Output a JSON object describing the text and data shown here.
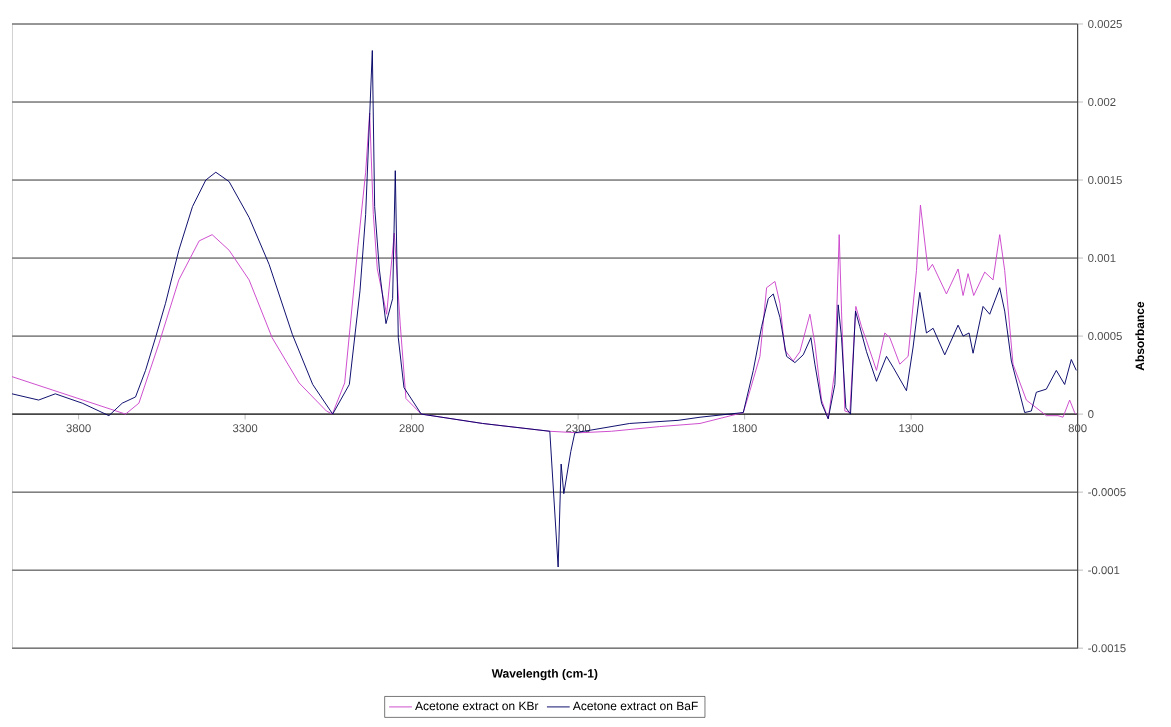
{
  "chart_data": {
    "type": "line",
    "xlabel": "Wavelength (cm-1)",
    "ylabel": "Absorbance",
    "xlim": [
      4000,
      800
    ],
    "xticks": [
      3800,
      3300,
      2800,
      2300,
      1800,
      1300,
      800
    ],
    "ylim": [
      -0.0015,
      0.0025
    ],
    "yticks": [
      0.0025,
      0.002,
      0.0015,
      0.001,
      0.0005,
      0,
      -0.0005,
      -0.001,
      -0.0015
    ],
    "grid": "y",
    "legend": "bottom",
    "series": [
      {
        "name": "Acetone extract on KBr",
        "color": "#cc44cc",
        "x": [
          4000,
          3659,
          3619,
          3559,
          3499,
          3438,
          3399,
          3348,
          3288,
          3219,
          3138,
          3056,
          3038,
          3001,
          2961,
          2938,
          2926,
          2915,
          2903,
          2875,
          2852,
          2834,
          2817,
          2771,
          2587,
          2385,
          2300,
          2200,
          2055,
          1934,
          1804,
          1784,
          1754,
          1734,
          1709,
          1694,
          1679,
          1654,
          1634,
          1604,
          1589,
          1569,
          1549,
          1529,
          1516,
          1509,
          1499,
          1484,
          1466,
          1449,
          1434,
          1404,
          1379,
          1364,
          1334,
          1309,
          1284,
          1272,
          1249,
          1236,
          1194,
          1159,
          1144,
          1129,
          1112,
          1079,
          1054,
          1034,
          1019,
          994,
          954,
          894,
          859,
          844,
          824,
          809,
          804
        ],
        "values": [
          0.00024,
          0,
          7e-05,
          0.00045,
          0.00086,
          0.00111,
          0.00115,
          0.00105,
          0.00086,
          0.00049,
          0.0002,
          2e-05,
          0,
          0.0002,
          0.00108,
          0.00155,
          0.00193,
          0.00128,
          0.00093,
          0.00064,
          0.00116,
          0.00057,
          0.0001,
          0,
          -6e-05,
          -0.00011,
          -0.00012,
          -0.00011,
          -8e-05,
          -6e-05,
          1e-05,
          0.00015,
          0.00037,
          0.00081,
          0.00085,
          0.00071,
          0.00041,
          0.00034,
          0.0004,
          0.00064,
          0.00045,
          9e-05,
          -3e-05,
          0.00028,
          0.00115,
          0.00066,
          2e-05,
          1e-05,
          0.00069,
          0.00056,
          0.00047,
          0.00028,
          0.00052,
          0.00049,
          0.00032,
          0.00037,
          0.00092,
          0.00134,
          0.00092,
          0.00096,
          0.00077,
          0.00093,
          0.00076,
          0.0009,
          0.00076,
          0.00091,
          0.00086,
          0.00115,
          0.00092,
          0.00032,
          9e-05,
          -1e-05,
          -1e-05,
          -2e-05,
          9e-05,
          1e-05,
          0
        ]
      },
      {
        "name": "Acetone extract on BaF",
        "color": "#000066",
        "x": [
          4000,
          3920,
          3870,
          3789,
          3709,
          3669,
          3629,
          3599,
          3569,
          3539,
          3499,
          3458,
          3418,
          3388,
          3348,
          3288,
          3228,
          3158,
          3097,
          3037,
          2987,
          2955,
          2938,
          2918,
          2911,
          2897,
          2877,
          2857,
          2849,
          2840,
          2823,
          2771,
          2587,
          2385,
          2360,
          2351,
          2343,
          2322,
          2310,
          2145,
          2000,
          1934,
          1804,
          1774,
          1749,
          1729,
          1714,
          1694,
          1674,
          1649,
          1624,
          1601,
          1589,
          1569,
          1549,
          1529,
          1519,
          1509,
          1496,
          1482,
          1467,
          1454,
          1434,
          1404,
          1374,
          1354,
          1314,
          1294,
          1274,
          1254,
          1234,
          1199,
          1159,
          1144,
          1126,
          1114,
          1084,
          1064,
          1034,
          1019,
          999,
          959,
          939,
          924,
          894,
          864,
          839,
          819,
          804
        ],
        "values": [
          0.00013,
          9e-05,
          0.00013,
          7e-05,
          -1e-05,
          7e-05,
          0.00011,
          0.00028,
          0.00049,
          0.00071,
          0.00105,
          0.00133,
          0.0015,
          0.00155,
          0.00149,
          0.00126,
          0.00096,
          0.00051,
          0.00019,
          0,
          0.00019,
          0.00079,
          0.00128,
          0.00233,
          0.00133,
          0.00093,
          0.00058,
          0.00074,
          0.00156,
          0.00049,
          0.00017,
          0,
          -6e-05,
          -0.00011,
          -0.00098,
          -0.00032,
          -0.00051,
          -0.00024,
          -0.00012,
          -6e-05,
          -4e-05,
          -2e-05,
          1e-05,
          0.00028,
          0.00056,
          0.00074,
          0.00077,
          0.00062,
          0.00037,
          0.00033,
          0.00038,
          0.00049,
          0.00032,
          7e-05,
          -3e-05,
          0.00019,
          0.0007,
          0.00049,
          4e-05,
          0,
          0.00066,
          0.00056,
          0.0004,
          0.00021,
          0.00037,
          0.0003,
          0.00015,
          0.00043,
          0.00078,
          0.00052,
          0.00055,
          0.00038,
          0.00057,
          0.0005,
          0.00052,
          0.00039,
          0.00069,
          0.00064,
          0.00081,
          0.00066,
          0.00034,
          1e-05,
          2e-05,
          0.00014,
          0.00016,
          0.00028,
          0.00019,
          0.00035,
          0.00028
        ]
      }
    ]
  }
}
